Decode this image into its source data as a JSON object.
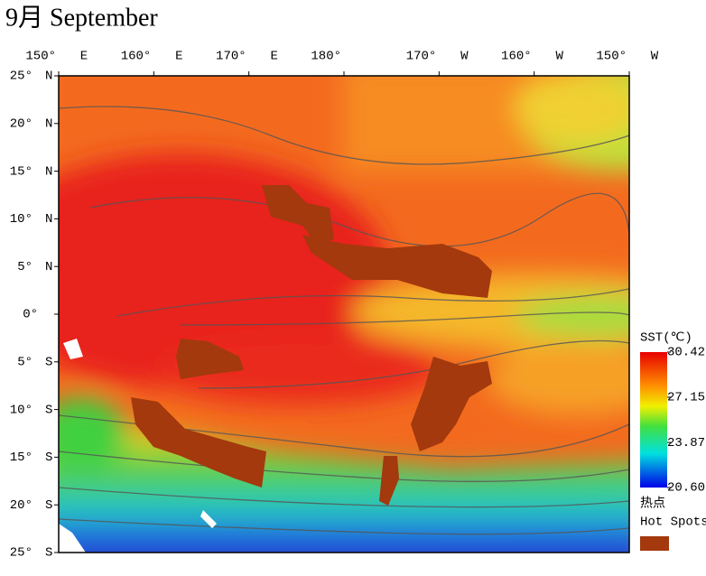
{
  "title": "9月 September",
  "map": {
    "lon_ticks": [
      {
        "value": 150,
        "label": "150°",
        "hemi": "E"
      },
      {
        "value": 160,
        "label": "160°",
        "hemi": "E"
      },
      {
        "value": 170,
        "label": "170°",
        "hemi": "E"
      },
      {
        "value": 180,
        "label": "180°"
      },
      {
        "value": 190,
        "label": "170°",
        "hemi": "W"
      },
      {
        "value": 200,
        "label": "160°",
        "hemi": "W"
      },
      {
        "value": 210,
        "label": "150°",
        "hemi": "W"
      }
    ],
    "lat_ticks": [
      {
        "value": 25,
        "label": "25°",
        "hemi": "N"
      },
      {
        "value": 20,
        "label": "20°",
        "hemi": "N"
      },
      {
        "value": 15,
        "label": "15°",
        "hemi": "N"
      },
      {
        "value": 10,
        "label": "10°",
        "hemi": "N"
      },
      {
        "value": 5,
        "label": "5°",
        "hemi": "N"
      },
      {
        "value": 0,
        "label": "0°"
      },
      {
        "value": -5,
        "label": "5°",
        "hemi": "S"
      },
      {
        "value": -10,
        "label": "10°",
        "hemi": "S"
      },
      {
        "value": -15,
        "label": "15°",
        "hemi": "S"
      },
      {
        "value": -20,
        "label": "20°",
        "hemi": "S"
      },
      {
        "value": -25,
        "label": "25°",
        "hemi": "S"
      }
    ],
    "lonlim": [
      150,
      210
    ],
    "latlim": [
      -25,
      25
    ]
  },
  "colorbar": {
    "title": "SST(℃)",
    "clim": [
      20.6,
      30.42
    ],
    "ticks": [
      {
        "value": 30.42,
        "label": "30.42"
      },
      {
        "value": 27.15,
        "label": "27.15"
      },
      {
        "value": 23.87,
        "label": "23.87"
      },
      {
        "value": 20.6,
        "label": "20.60"
      }
    ]
  },
  "legend": {
    "label_cn": "热点",
    "label_en": "Hot Spots",
    "color": "#a3390d"
  }
}
